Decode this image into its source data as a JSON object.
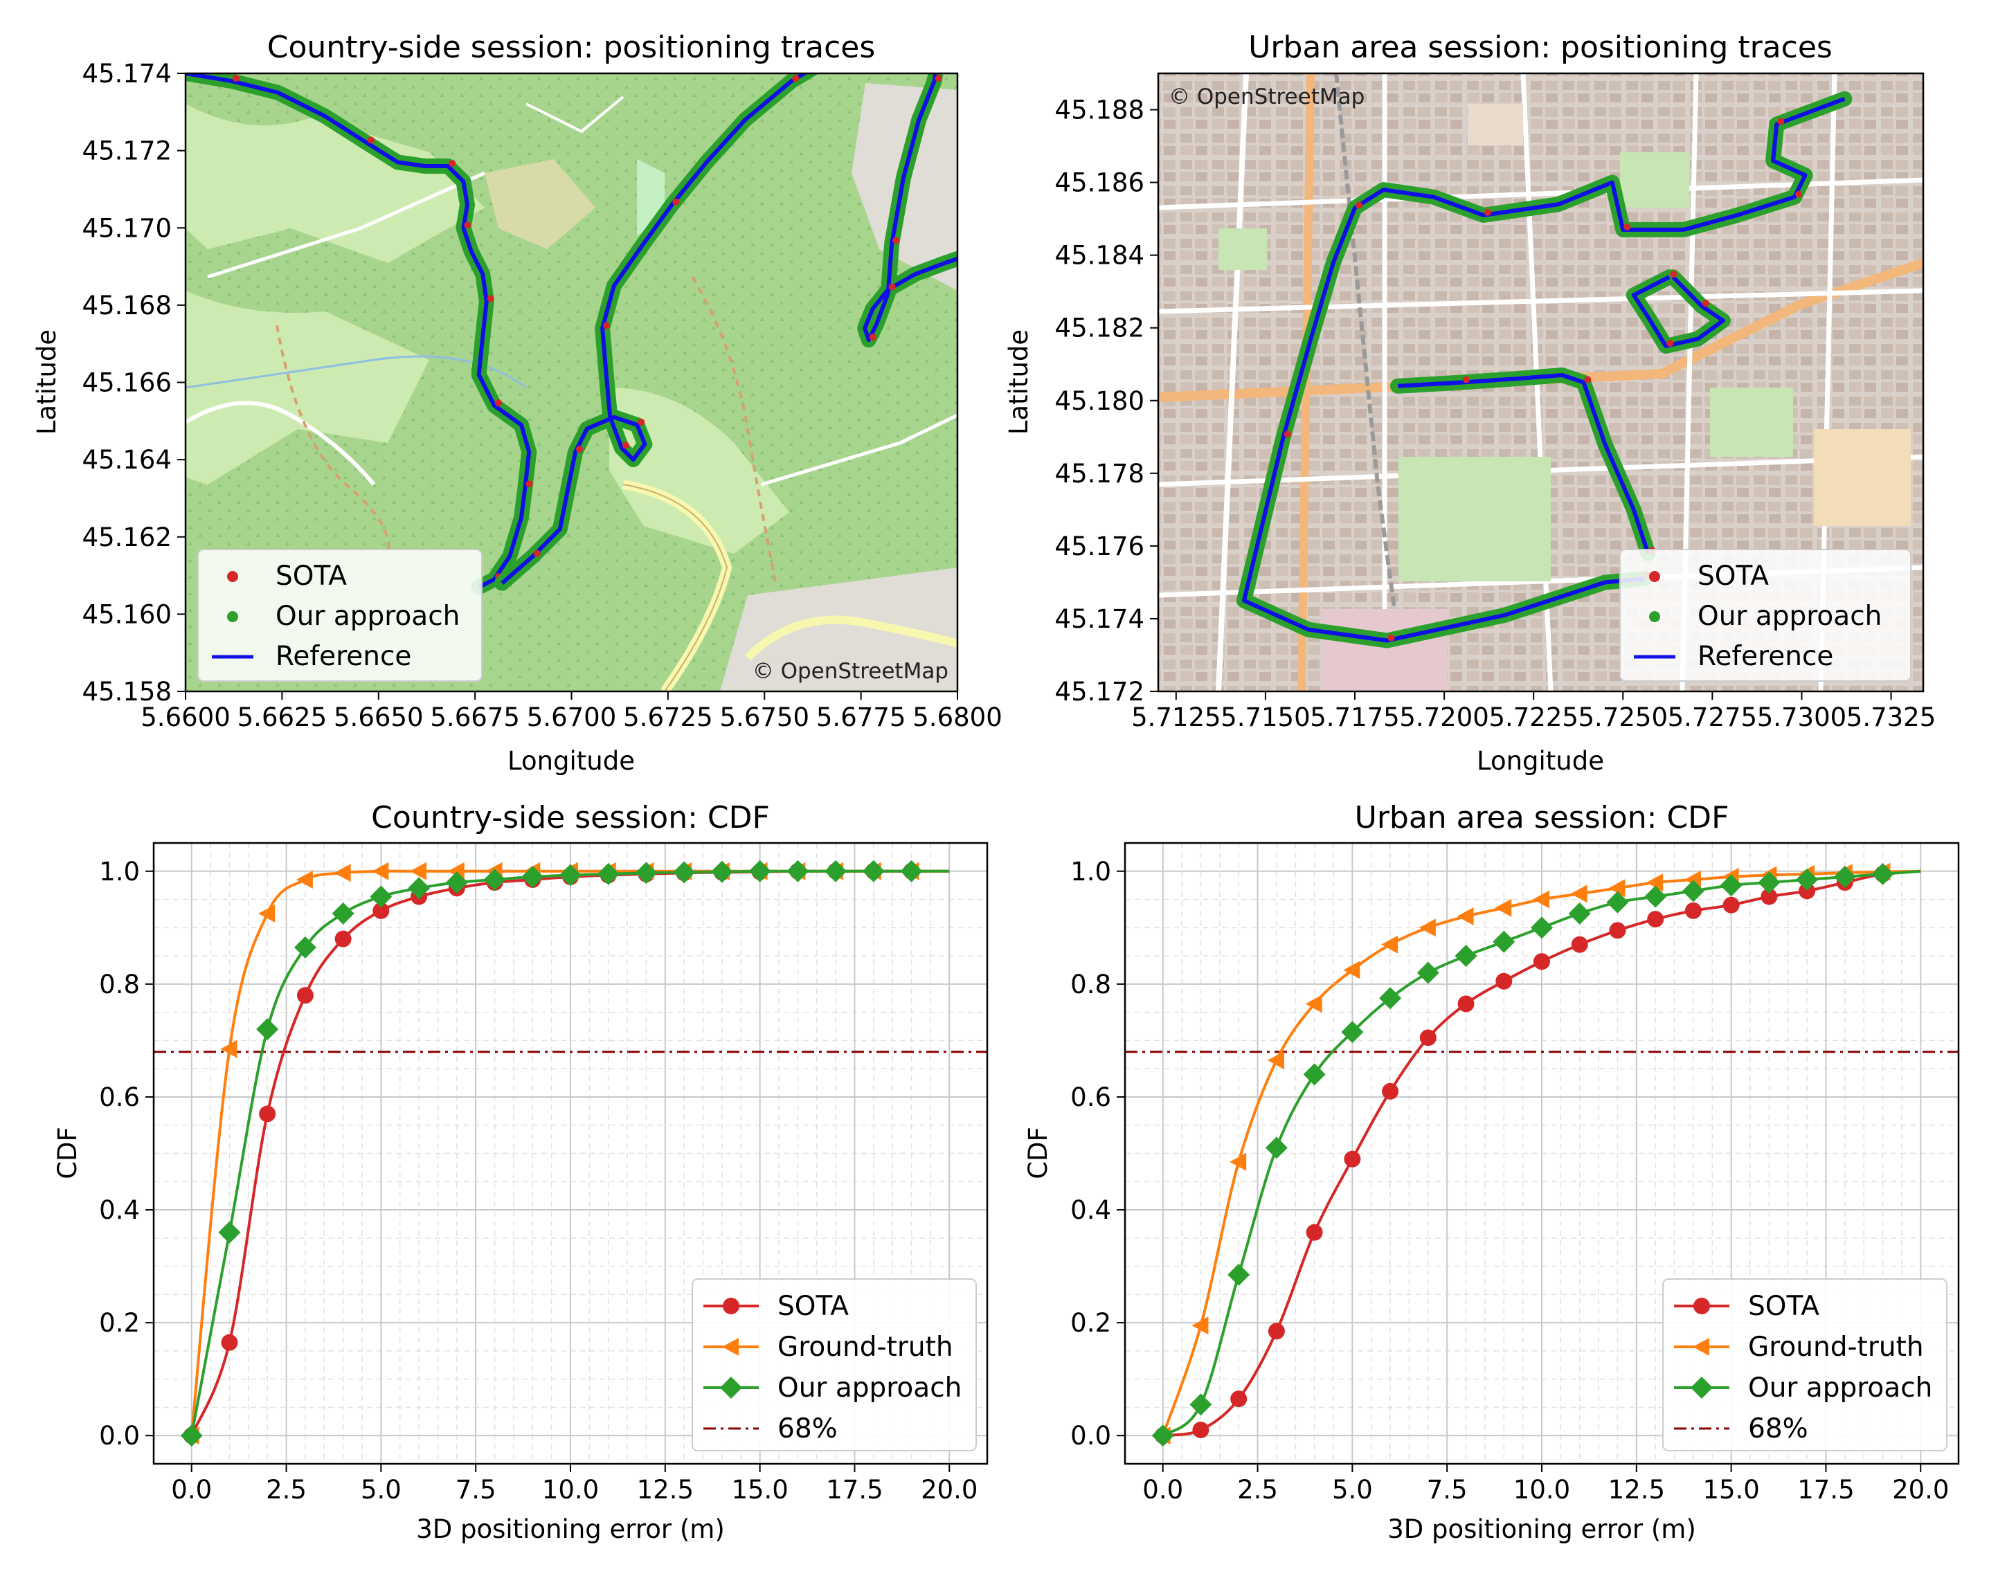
{
  "colors": {
    "sota": "#d62728",
    "ground_truth": "#ff7f0e",
    "ours": "#2ca02c",
    "reference": "#1010e6",
    "threshold": "#8b0000",
    "map_forest": "#a8d58d",
    "map_field": "#cdebb0",
    "map_urban": "#e0d4cc",
    "map_road": "#ffffff"
  },
  "chart_data": [
    {
      "id": "country_map",
      "type": "scatter",
      "title": "Country-side session: positioning traces",
      "xlabel": "Longitude",
      "ylabel": "Latitude",
      "xlim": [
        5.66,
        5.68
      ],
      "ylim": [
        45.158,
        45.174
      ],
      "xticks": [
        "5.6600",
        "5.6625",
        "5.6650",
        "5.6675",
        "5.6700",
        "5.6725",
        "5.6750",
        "5.6775",
        "5.6800"
      ],
      "yticks": [
        "45.158",
        "45.160",
        "45.162",
        "45.164",
        "45.166",
        "45.168",
        "45.170",
        "45.172",
        "45.174"
      ],
      "attribution": "© OpenStreetMap",
      "background": "map",
      "legend": [
        {
          "label": "SOTA",
          "style": "dot",
          "color_key": "sota"
        },
        {
          "label": "Our approach",
          "style": "dot",
          "color_key": "ours"
        },
        {
          "label": "Reference",
          "style": "line",
          "color_key": "reference"
        }
      ],
      "legend_loc": "lower-left",
      "attribution_loc": "lower-right",
      "series": [
        {
          "name": "Reference",
          "points": [
            [
              5.66,
              45.174
            ],
            [
              5.6612,
              45.1738
            ],
            [
              5.6624,
              45.1735
            ],
            [
              5.6636,
              45.1729
            ],
            [
              5.6647,
              45.1722
            ],
            [
              5.6655,
              45.1717
            ],
            [
              5.6662,
              45.1716
            ],
            [
              5.6668,
              45.1716
            ],
            [
              5.6672,
              45.1712
            ],
            [
              5.6673,
              45.1706
            ],
            [
              5.6672,
              45.17
            ],
            [
              5.6674,
              45.1694
            ],
            [
              5.6677,
              45.1688
            ],
            [
              5.6678,
              45.1681
            ],
            [
              5.6677,
              45.1672
            ],
            [
              5.6676,
              45.1662
            ],
            [
              5.668,
              45.1654
            ],
            [
              5.6687,
              45.1649
            ],
            [
              5.6689,
              45.1642
            ],
            [
              5.6688,
              45.1633
            ],
            [
              5.6687,
              45.1625
            ],
            [
              5.6684,
              45.1615
            ],
            [
              5.668,
              45.1609
            ],
            [
              5.6676,
              45.1607
            ]
          ]
        },
        {
          "name": "Reference",
          "points": [
            [
              5.6682,
              45.1608
            ],
            [
              5.669,
              45.1615
            ],
            [
              5.6697,
              45.1622
            ],
            [
              5.6699,
              45.1632
            ],
            [
              5.6701,
              45.1642
            ],
            [
              5.6704,
              45.1648
            ],
            [
              5.6711,
              45.1651
            ],
            [
              5.6717,
              45.1649
            ],
            [
              5.6719,
              45.1644
            ],
            [
              5.6716,
              45.164
            ],
            [
              5.6713,
              45.1643
            ],
            [
              5.671,
              45.1651
            ],
            [
              5.6709,
              45.1662
            ],
            [
              5.6708,
              45.1674
            ],
            [
              5.6711,
              45.1685
            ],
            [
              5.6718,
              45.1695
            ],
            [
              5.6726,
              45.1706
            ],
            [
              5.6735,
              45.1717
            ],
            [
              5.6745,
              45.1728
            ],
            [
              5.6757,
              45.1738
            ],
            [
              5.6767,
              45.1744
            ]
          ]
        },
        {
          "name": "Reference",
          "points": [
            [
              5.6795,
              45.1744
            ],
            [
              5.6794,
              45.1738
            ],
            [
              5.679,
              45.1728
            ],
            [
              5.6786,
              45.1713
            ],
            [
              5.6783,
              45.1696
            ],
            [
              5.6782,
              45.1683
            ],
            [
              5.6779,
              45.1675
            ],
            [
              5.6777,
              45.1671
            ],
            [
              5.6776,
              45.1674
            ],
            [
              5.6778,
              45.1679
            ],
            [
              5.6782,
              45.1684
            ],
            [
              5.6789,
              45.1688
            ],
            [
              5.6797,
              45.1691
            ],
            [
              5.68,
              45.1692
            ]
          ]
        }
      ]
    },
    {
      "id": "urban_map",
      "type": "scatter",
      "title": "Urban area session: positioning traces",
      "xlabel": "Longitude",
      "ylabel": "Latitude",
      "xlim": [
        5.712,
        5.7334
      ],
      "ylim": [
        45.172,
        45.189
      ],
      "xticks": [
        "5.7125",
        "5.7150",
        "5.7175",
        "5.7200",
        "5.7225",
        "5.7250",
        "5.7275",
        "5.7300",
        "5.7325"
      ],
      "yticks": [
        "45.172",
        "45.174",
        "45.176",
        "45.178",
        "45.180",
        "45.182",
        "45.184",
        "45.186",
        "45.188"
      ],
      "attribution": "© OpenStreetMap",
      "background": "map",
      "legend": [
        {
          "label": "SOTA",
          "style": "dot",
          "color_key": "sota"
        },
        {
          "label": "Our approach",
          "style": "dot",
          "color_key": "ours"
        },
        {
          "label": "Reference",
          "style": "line",
          "color_key": "reference"
        }
      ],
      "legend_loc": "lower-right",
      "attribution_loc": "upper-left",
      "series": [
        {
          "name": "Reference",
          "points": [
            [
              5.7312,
              45.1883
            ],
            [
              5.7293,
              45.1876
            ],
            [
              5.7292,
              45.1866
            ],
            [
              5.7301,
              45.1862
            ],
            [
              5.7298,
              45.1856
            ],
            [
              5.7282,
              45.1851
            ],
            [
              5.7267,
              45.1847
            ],
            [
              5.725,
              45.1847
            ],
            [
              5.7247,
              45.186
            ],
            [
              5.7232,
              45.1854
            ],
            [
              5.7211,
              45.1851
            ],
            [
              5.7197,
              45.1856
            ],
            [
              5.7183,
              45.1858
            ],
            [
              5.7175,
              45.1853
            ],
            [
              5.7169,
              45.1838
            ],
            [
              5.7163,
              45.1818
            ],
            [
              5.7155,
              45.179
            ],
            [
              5.7144,
              45.1745
            ],
            [
              5.7162,
              45.1737
            ],
            [
              5.7184,
              45.1734
            ],
            [
              5.7217,
              45.1741
            ],
            [
              5.7245,
              45.175
            ],
            [
              5.7256,
              45.1751
            ]
          ]
        },
        {
          "name": "Reference",
          "points": [
            [
              5.7187,
              45.1804
            ],
            [
              5.7205,
              45.1805
            ],
            [
              5.722,
              45.1806
            ],
            [
              5.7233,
              45.1807
            ],
            [
              5.7239,
              45.1805
            ],
            [
              5.7245,
              45.1788
            ],
            [
              5.7253,
              45.177
            ],
            [
              5.7257,
              45.1758
            ]
          ]
        },
        {
          "name": "Reference",
          "points": [
            [
              5.7264,
              45.1834
            ],
            [
              5.7272,
              45.1826
            ],
            [
              5.7278,
              45.1822
            ],
            [
              5.7271,
              45.1817
            ],
            [
              5.7262,
              45.1815
            ],
            [
              5.7257,
              45.1823
            ],
            [
              5.7253,
              45.1829
            ],
            [
              5.7263,
              45.1834
            ]
          ]
        }
      ]
    },
    {
      "id": "country_cdf",
      "type": "line",
      "title": "Country-side session: CDF",
      "xlabel": "3D positioning error (m)",
      "ylabel": "CDF",
      "xlim": [
        -1.0,
        21.0
      ],
      "ylim": [
        -0.05,
        1.05
      ],
      "xticks": [
        "0.0",
        "2.5",
        "5.0",
        "7.5",
        "10.0",
        "12.5",
        "15.0",
        "17.5",
        "20.0"
      ],
      "yticks": [
        "0.0",
        "0.2",
        "0.4",
        "0.6",
        "0.8",
        "1.0"
      ],
      "threshold": {
        "label": "68%",
        "value": 0.68
      },
      "legend_loc": "lower-right",
      "grid": true,
      "series": [
        {
          "name": "SOTA",
          "color_key": "sota",
          "marker": "circle",
          "x": [
            0,
            1,
            2,
            3,
            4,
            5,
            6,
            7,
            8,
            9,
            10,
            11,
            12,
            13,
            14,
            15,
            16,
            17,
            18,
            19,
            20
          ],
          "values": [
            0.0,
            0.165,
            0.57,
            0.78,
            0.88,
            0.93,
            0.955,
            0.97,
            0.98,
            0.985,
            0.99,
            0.993,
            0.995,
            0.997,
            0.998,
            0.999,
            1.0,
            1.0,
            1.0,
            1.0,
            1.0
          ]
        },
        {
          "name": "Ground-truth",
          "color_key": "ground_truth",
          "marker": "triangle-left",
          "x": [
            0,
            1,
            2,
            3,
            4,
            5,
            6,
            7,
            8,
            9,
            10,
            11,
            12,
            13,
            14,
            15,
            16,
            17,
            18,
            19,
            20
          ],
          "values": [
            0.0,
            0.685,
            0.925,
            0.985,
            0.997,
            1.0,
            1.0,
            1.0,
            1.0,
            1.0,
            1.0,
            1.0,
            1.0,
            1.0,
            1.0,
            1.0,
            1.0,
            1.0,
            1.0,
            1.0,
            1.0
          ]
        },
        {
          "name": "Our approach",
          "color_key": "ours",
          "marker": "diamond",
          "x": [
            0,
            1,
            2,
            3,
            4,
            5,
            6,
            7,
            8,
            9,
            10,
            11,
            12,
            13,
            14,
            15,
            16,
            17,
            18,
            19,
            20
          ],
          "values": [
            0.0,
            0.36,
            0.72,
            0.865,
            0.925,
            0.955,
            0.97,
            0.98,
            0.985,
            0.99,
            0.993,
            0.995,
            0.997,
            0.998,
            0.999,
            1.0,
            1.0,
            1.0,
            1.0,
            1.0,
            1.0
          ]
        }
      ],
      "legend_entries": [
        "SOTA",
        "Ground-truth",
        "Our approach",
        "68%"
      ]
    },
    {
      "id": "urban_cdf",
      "type": "line",
      "title": "Urban area session: CDF",
      "xlabel": "3D positioning error (m)",
      "ylabel": "CDF",
      "xlim": [
        -1.0,
        21.0
      ],
      "ylim": [
        -0.05,
        1.05
      ],
      "xticks": [
        "0.0",
        "2.5",
        "5.0",
        "7.5",
        "10.0",
        "12.5",
        "15.0",
        "17.5",
        "20.0"
      ],
      "yticks": [
        "0.0",
        "0.2",
        "0.4",
        "0.6",
        "0.8",
        "1.0"
      ],
      "threshold": {
        "label": "68%",
        "value": 0.68
      },
      "legend_loc": "lower-right",
      "grid": true,
      "series": [
        {
          "name": "SOTA",
          "color_key": "sota",
          "marker": "circle",
          "x": [
            0,
            1,
            2,
            3,
            4,
            5,
            6,
            7,
            8,
            9,
            10,
            11,
            12,
            13,
            14,
            15,
            16,
            17,
            18,
            19,
            20
          ],
          "values": [
            0.0,
            0.01,
            0.065,
            0.185,
            0.36,
            0.49,
            0.61,
            0.705,
            0.765,
            0.805,
            0.84,
            0.87,
            0.895,
            0.915,
            0.93,
            0.94,
            0.955,
            0.965,
            0.98,
            0.995,
            1.0
          ]
        },
        {
          "name": "Ground-truth",
          "color_key": "ground_truth",
          "marker": "triangle-left",
          "x": [
            0,
            1,
            2,
            3,
            4,
            5,
            6,
            7,
            8,
            9,
            10,
            11,
            12,
            13,
            14,
            15,
            16,
            17,
            18,
            19,
            20
          ],
          "values": [
            0.0,
            0.195,
            0.485,
            0.665,
            0.765,
            0.825,
            0.87,
            0.9,
            0.92,
            0.935,
            0.95,
            0.96,
            0.97,
            0.98,
            0.985,
            0.99,
            0.993,
            0.995,
            0.997,
            0.999,
            1.0
          ]
        },
        {
          "name": "Our approach",
          "color_key": "ours",
          "marker": "diamond",
          "x": [
            0,
            1,
            2,
            3,
            4,
            5,
            6,
            7,
            8,
            9,
            10,
            11,
            12,
            13,
            14,
            15,
            16,
            17,
            18,
            19,
            20
          ],
          "values": [
            0.0,
            0.055,
            0.285,
            0.51,
            0.64,
            0.715,
            0.775,
            0.82,
            0.85,
            0.875,
            0.9,
            0.925,
            0.945,
            0.955,
            0.965,
            0.975,
            0.98,
            0.985,
            0.99,
            0.995,
            1.0
          ]
        }
      ],
      "legend_entries": [
        "SOTA",
        "Ground-truth",
        "Our approach",
        "68%"
      ]
    }
  ]
}
